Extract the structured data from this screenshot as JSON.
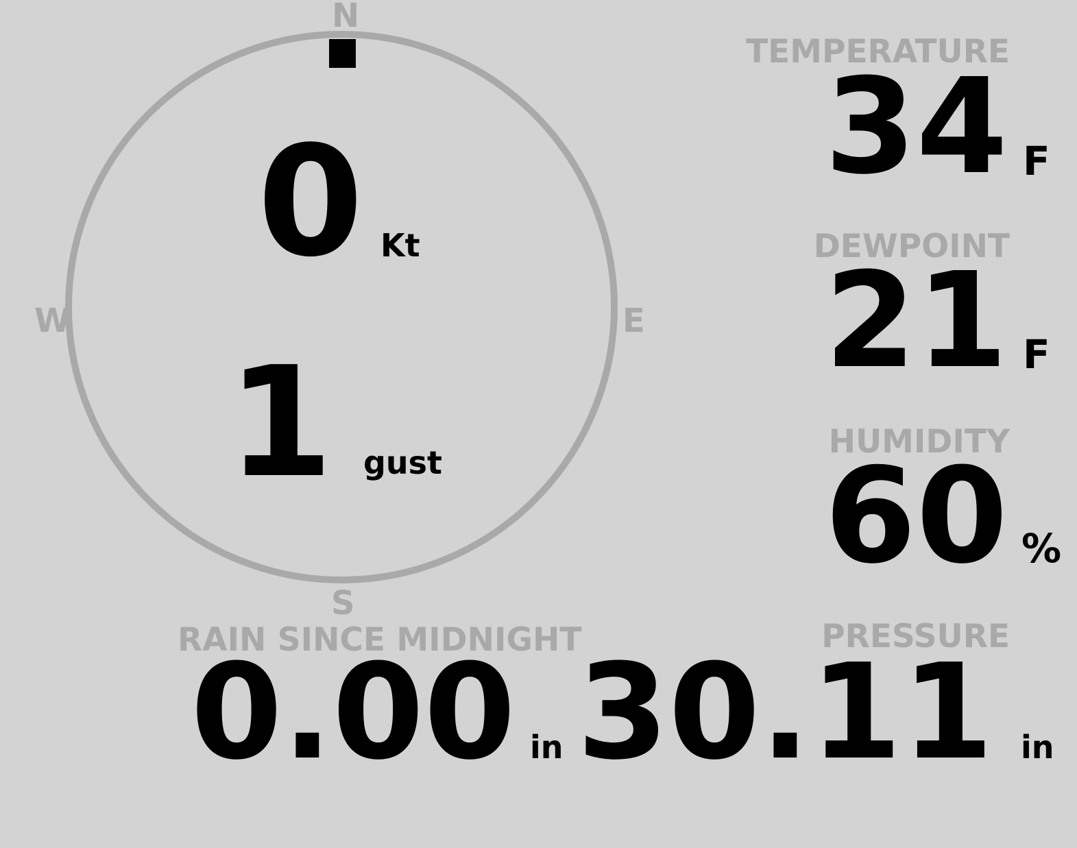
{
  "wind": {
    "compass": {
      "north": "N",
      "south": "S",
      "east": "E",
      "west": "W",
      "direction_deg": 0
    },
    "speed": "0",
    "speed_unit": "Kt",
    "gust": "1",
    "gust_unit": "gust"
  },
  "temperature": {
    "label": "TEMPERATURE",
    "value": "34",
    "unit": "F"
  },
  "dewpoint": {
    "label": "DEWPOINT",
    "value": "21",
    "unit": "F"
  },
  "humidity": {
    "label": "HUMIDITY",
    "value": "60",
    "unit": "%"
  },
  "pressure": {
    "label": "PRESSURE",
    "value": "30.11",
    "unit": "in"
  },
  "rain": {
    "label": "RAIN SINCE MIDNIGHT",
    "value": "0.00",
    "unit": "in"
  },
  "colors": {
    "background": "#d3d3d3",
    "label": "#a9a9a9",
    "value": "#000000"
  }
}
